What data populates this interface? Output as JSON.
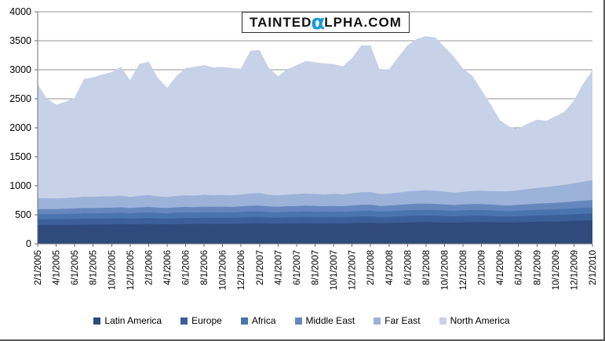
{
  "watermark": {
    "prefix": "TAINTED",
    "alpha": "α",
    "suffix": "LPHA.COM"
  },
  "axis_colors": {
    "gridline": "#949494",
    "axis": "#6e6e6e",
    "tick_label": "#000000"
  },
  "chart_data": {
    "type": "area",
    "stacked": true,
    "title": "",
    "xlabel": "",
    "ylabel": "",
    "grid": true,
    "legend_position": "bottom",
    "x_label_every": 2,
    "y_axis": {
      "min": 0,
      "max": 4000,
      "step": 500
    },
    "categories": [
      "2/1/2005",
      "3/1/2005",
      "4/1/2005",
      "5/1/2005",
      "6/1/2005",
      "7/1/2005",
      "8/1/2005",
      "9/1/2005",
      "10/1/2005",
      "11/1/2005",
      "12/1/2005",
      "1/1/2006",
      "2/1/2006",
      "3/1/2006",
      "4/1/2006",
      "5/1/2006",
      "6/1/2006",
      "7/1/2006",
      "8/1/2006",
      "9/1/2006",
      "10/1/2006",
      "11/1/2006",
      "12/1/2006",
      "1/1/2007",
      "2/1/2007",
      "3/1/2007",
      "4/1/2007",
      "5/1/2007",
      "6/1/2007",
      "7/1/2007",
      "8/1/2007",
      "9/1/2007",
      "10/1/2007",
      "11/1/2007",
      "12/1/2007",
      "1/1/2008",
      "2/1/2008",
      "3/1/2008",
      "4/1/2008",
      "5/1/2008",
      "6/1/2008",
      "7/1/2008",
      "8/1/2008",
      "9/1/2008",
      "10/1/2008",
      "11/1/2008",
      "12/1/2008",
      "1/1/2009",
      "2/1/2009",
      "3/1/2009",
      "4/1/2009",
      "5/1/2009",
      "6/1/2009",
      "7/1/2009",
      "8/1/2009",
      "9/1/2009",
      "10/1/2009",
      "11/1/2009",
      "12/1/2009",
      "1/1/2010",
      "2/1/2010"
    ],
    "series": [
      {
        "name": "Latin America",
        "color": "#2f4a7d",
        "values": [
          320,
          325,
          322,
          324,
          326,
          330,
          332,
          330,
          334,
          336,
          332,
          338,
          340,
          336,
          334,
          338,
          342,
          340,
          344,
          342,
          345,
          343,
          346,
          352,
          354,
          348,
          346,
          350,
          352,
          355,
          352,
          350,
          353,
          351,
          356,
          360,
          362,
          355,
          358,
          364,
          368,
          372,
          374,
          372,
          368,
          364,
          370,
          374,
          376,
          372,
          368,
          366,
          370,
          374,
          378,
          380,
          384,
          388,
          394,
          400,
          405
        ]
      },
      {
        "name": "Europe",
        "color": "#3b5f99",
        "values": [
          100,
          98,
          99,
          100,
          101,
          102,
          100,
          103,
          102,
          104,
          101,
          103,
          105,
          102,
          100,
          103,
          104,
          103,
          105,
          104,
          104,
          103,
          105,
          107,
          108,
          104,
          103,
          105,
          106,
          107,
          106,
          105,
          106,
          105,
          107,
          110,
          110,
          105,
          106,
          108,
          110,
          112,
          112,
          111,
          109,
          107,
          108,
          110,
          109,
          107,
          105,
          104,
          106,
          108,
          110,
          111,
          112,
          114,
          116,
          118,
          120
        ]
      },
      {
        "name": "Africa",
        "color": "#4a74ae",
        "values": [
          90,
          89,
          90,
          91,
          92,
          93,
          92,
          94,
          93,
          95,
          92,
          94,
          95,
          93,
          92,
          94,
          95,
          94,
          96,
          95,
          95,
          94,
          96,
          98,
          98,
          95,
          94,
          96,
          96,
          97,
          96,
          95,
          96,
          95,
          97,
          99,
          99,
          95,
          96,
          97,
          99,
          100,
          100,
          99,
          98,
          96,
          97,
          98,
          98,
          96,
          94,
          93,
          95,
          96,
          98,
          99,
          100,
          101,
          103,
          105,
          107
        ]
      },
      {
        "name": "Middle East",
        "color": "#6687be",
        "values": [
          88,
          87,
          88,
          89,
          90,
          92,
          91,
          93,
          92,
          94,
          91,
          93,
          95,
          92,
          91,
          93,
          95,
          94,
          96,
          95,
          96,
          95,
          97,
          99,
          100,
          96,
          95,
          97,
          98,
          99,
          98,
          97,
          98,
          97,
          100,
          103,
          103,
          98,
          99,
          101,
          104,
          106,
          107,
          106,
          104,
          101,
          103,
          105,
          105,
          102,
          99,
          98,
          100,
          103,
          106,
          108,
          110,
          113,
          117,
          121,
          124
        ]
      },
      {
        "name": "Far East",
        "color": "#9db2d9",
        "values": [
          190,
          186,
          183,
          185,
          188,
          196,
          194,
          198,
          196,
          202,
          192,
          200,
          205,
          195,
          188,
          196,
          200,
          199,
          203,
          200,
          202,
          200,
          203,
          212,
          213,
          202,
          197,
          202,
          205,
          208,
          206,
          204,
          206,
          203,
          210,
          218,
          218,
          205,
          207,
          212,
          220,
          226,
          228,
          226,
          220,
          214,
          218,
          224,
          228,
          232,
          238,
          244,
          252,
          262,
          272,
          282,
          292,
          302,
          315,
          328,
          340
        ]
      },
      {
        "name": "North America",
        "color": "#c7d2e8",
        "values": [
          1962,
          1715,
          1618,
          1661,
          1723,
          2027,
          2061,
          2102,
          2143,
          2219,
          2012,
          2272,
          2300,
          2042,
          1885,
          2066,
          2194,
          2220,
          2236,
          2204,
          2208,
          2195,
          2173,
          2462,
          2467,
          2185,
          2055,
          2160,
          2223,
          2284,
          2272,
          2259,
          2241,
          2209,
          2330,
          2530,
          2528,
          2142,
          2144,
          2338,
          2519,
          2614,
          2659,
          2646,
          2491,
          2348,
          2124,
          1989,
          1734,
          1491,
          1226,
          1115,
          1057,
          1127,
          1176,
          1140,
          1202,
          1262,
          1425,
          1688,
          1894
        ]
      }
    ]
  }
}
